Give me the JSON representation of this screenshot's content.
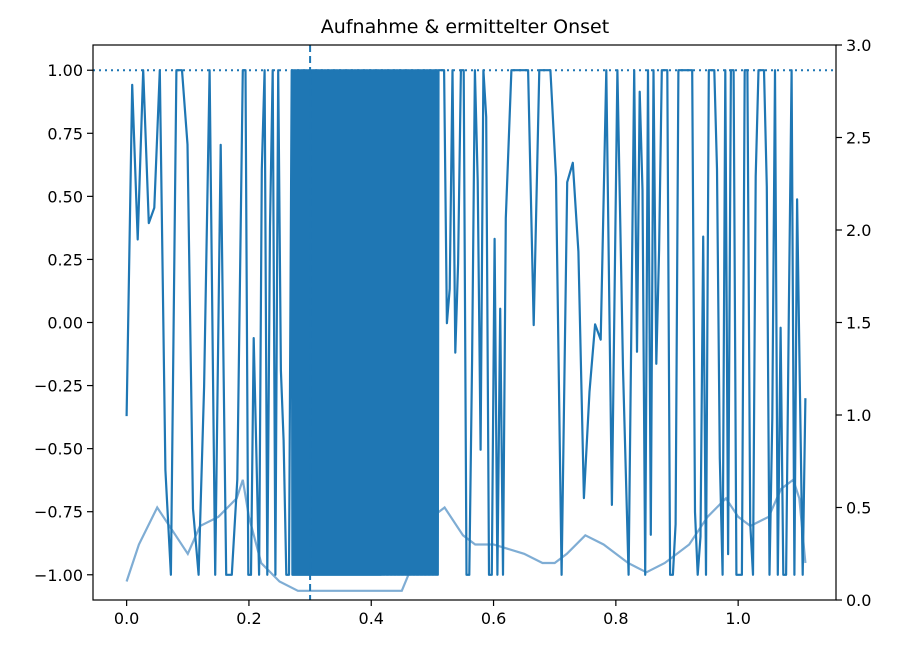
{
  "chart_data": {
    "type": "line",
    "title": "Aufnahme & ermittelter Onset",
    "xlabel": "",
    "ylabel": "",
    "xlim": [
      -0.055,
      1.16
    ],
    "ylim": [
      -1.1,
      1.1
    ],
    "y2lim": [
      0.0,
      3.0
    ],
    "x_ticks": [
      0.0,
      0.2,
      0.4,
      0.6,
      0.8,
      1.0
    ],
    "y_ticks": [
      -1.0,
      -0.75,
      -0.5,
      -0.25,
      0.0,
      0.25,
      0.5,
      0.75,
      1.0
    ],
    "y2_ticks": [
      0.0,
      0.5,
      1.0,
      1.5,
      2.0,
      2.5,
      3.0
    ],
    "grid": false,
    "colors": {
      "signal": "#1f77b4",
      "envelope": "#7fadd4",
      "onset": "#1f77b4",
      "threshold": "#1f77b4"
    },
    "series": [
      {
        "axis": "left",
        "style": "solid",
        "duration": 1.11,
        "segments": [
          {
            "x": [
              0.0,
              0.19
            ],
            "density": "sparse"
          },
          {
            "x": [
              0.19,
              0.27
            ],
            "density": "medium"
          },
          {
            "x": [
              0.27,
              0.51
            ],
            "density": "dense"
          },
          {
            "x": [
              0.51,
              0.62
            ],
            "density": "medium"
          },
          {
            "x": [
              0.62,
              0.83
            ],
            "density": "sparse"
          },
          {
            "x": [
              0.83,
              1.11
            ],
            "density": "medium"
          }
        ]
      },
      {
        "axis": "right",
        "style": "solid",
        "x": [
          0.0,
          0.02,
          0.05,
          0.08,
          0.1,
          0.12,
          0.15,
          0.18,
          0.19,
          0.2,
          0.22,
          0.25,
          0.28,
          0.3,
          0.35,
          0.4,
          0.45,
          0.5,
          0.52,
          0.55,
          0.57,
          0.6,
          0.65,
          0.68,
          0.7,
          0.72,
          0.75,
          0.78,
          0.8,
          0.82,
          0.85,
          0.88,
          0.92,
          0.95,
          0.98,
          1.0,
          1.02,
          1.05,
          1.07,
          1.09,
          1.1,
          1.11
        ],
        "y": [
          0.1,
          0.3,
          0.5,
          0.35,
          0.25,
          0.4,
          0.45,
          0.55,
          0.65,
          0.45,
          0.2,
          0.1,
          0.05,
          0.05,
          0.05,
          0.05,
          0.05,
          0.45,
          0.5,
          0.35,
          0.3,
          0.3,
          0.25,
          0.2,
          0.2,
          0.25,
          0.35,
          0.3,
          0.25,
          0.2,
          0.15,
          0.2,
          0.3,
          0.45,
          0.55,
          0.45,
          0.4,
          0.45,
          0.6,
          0.65,
          0.55,
          0.2
        ]
      }
    ],
    "onset_x": 0.3,
    "threshold_y": 1.0
  }
}
